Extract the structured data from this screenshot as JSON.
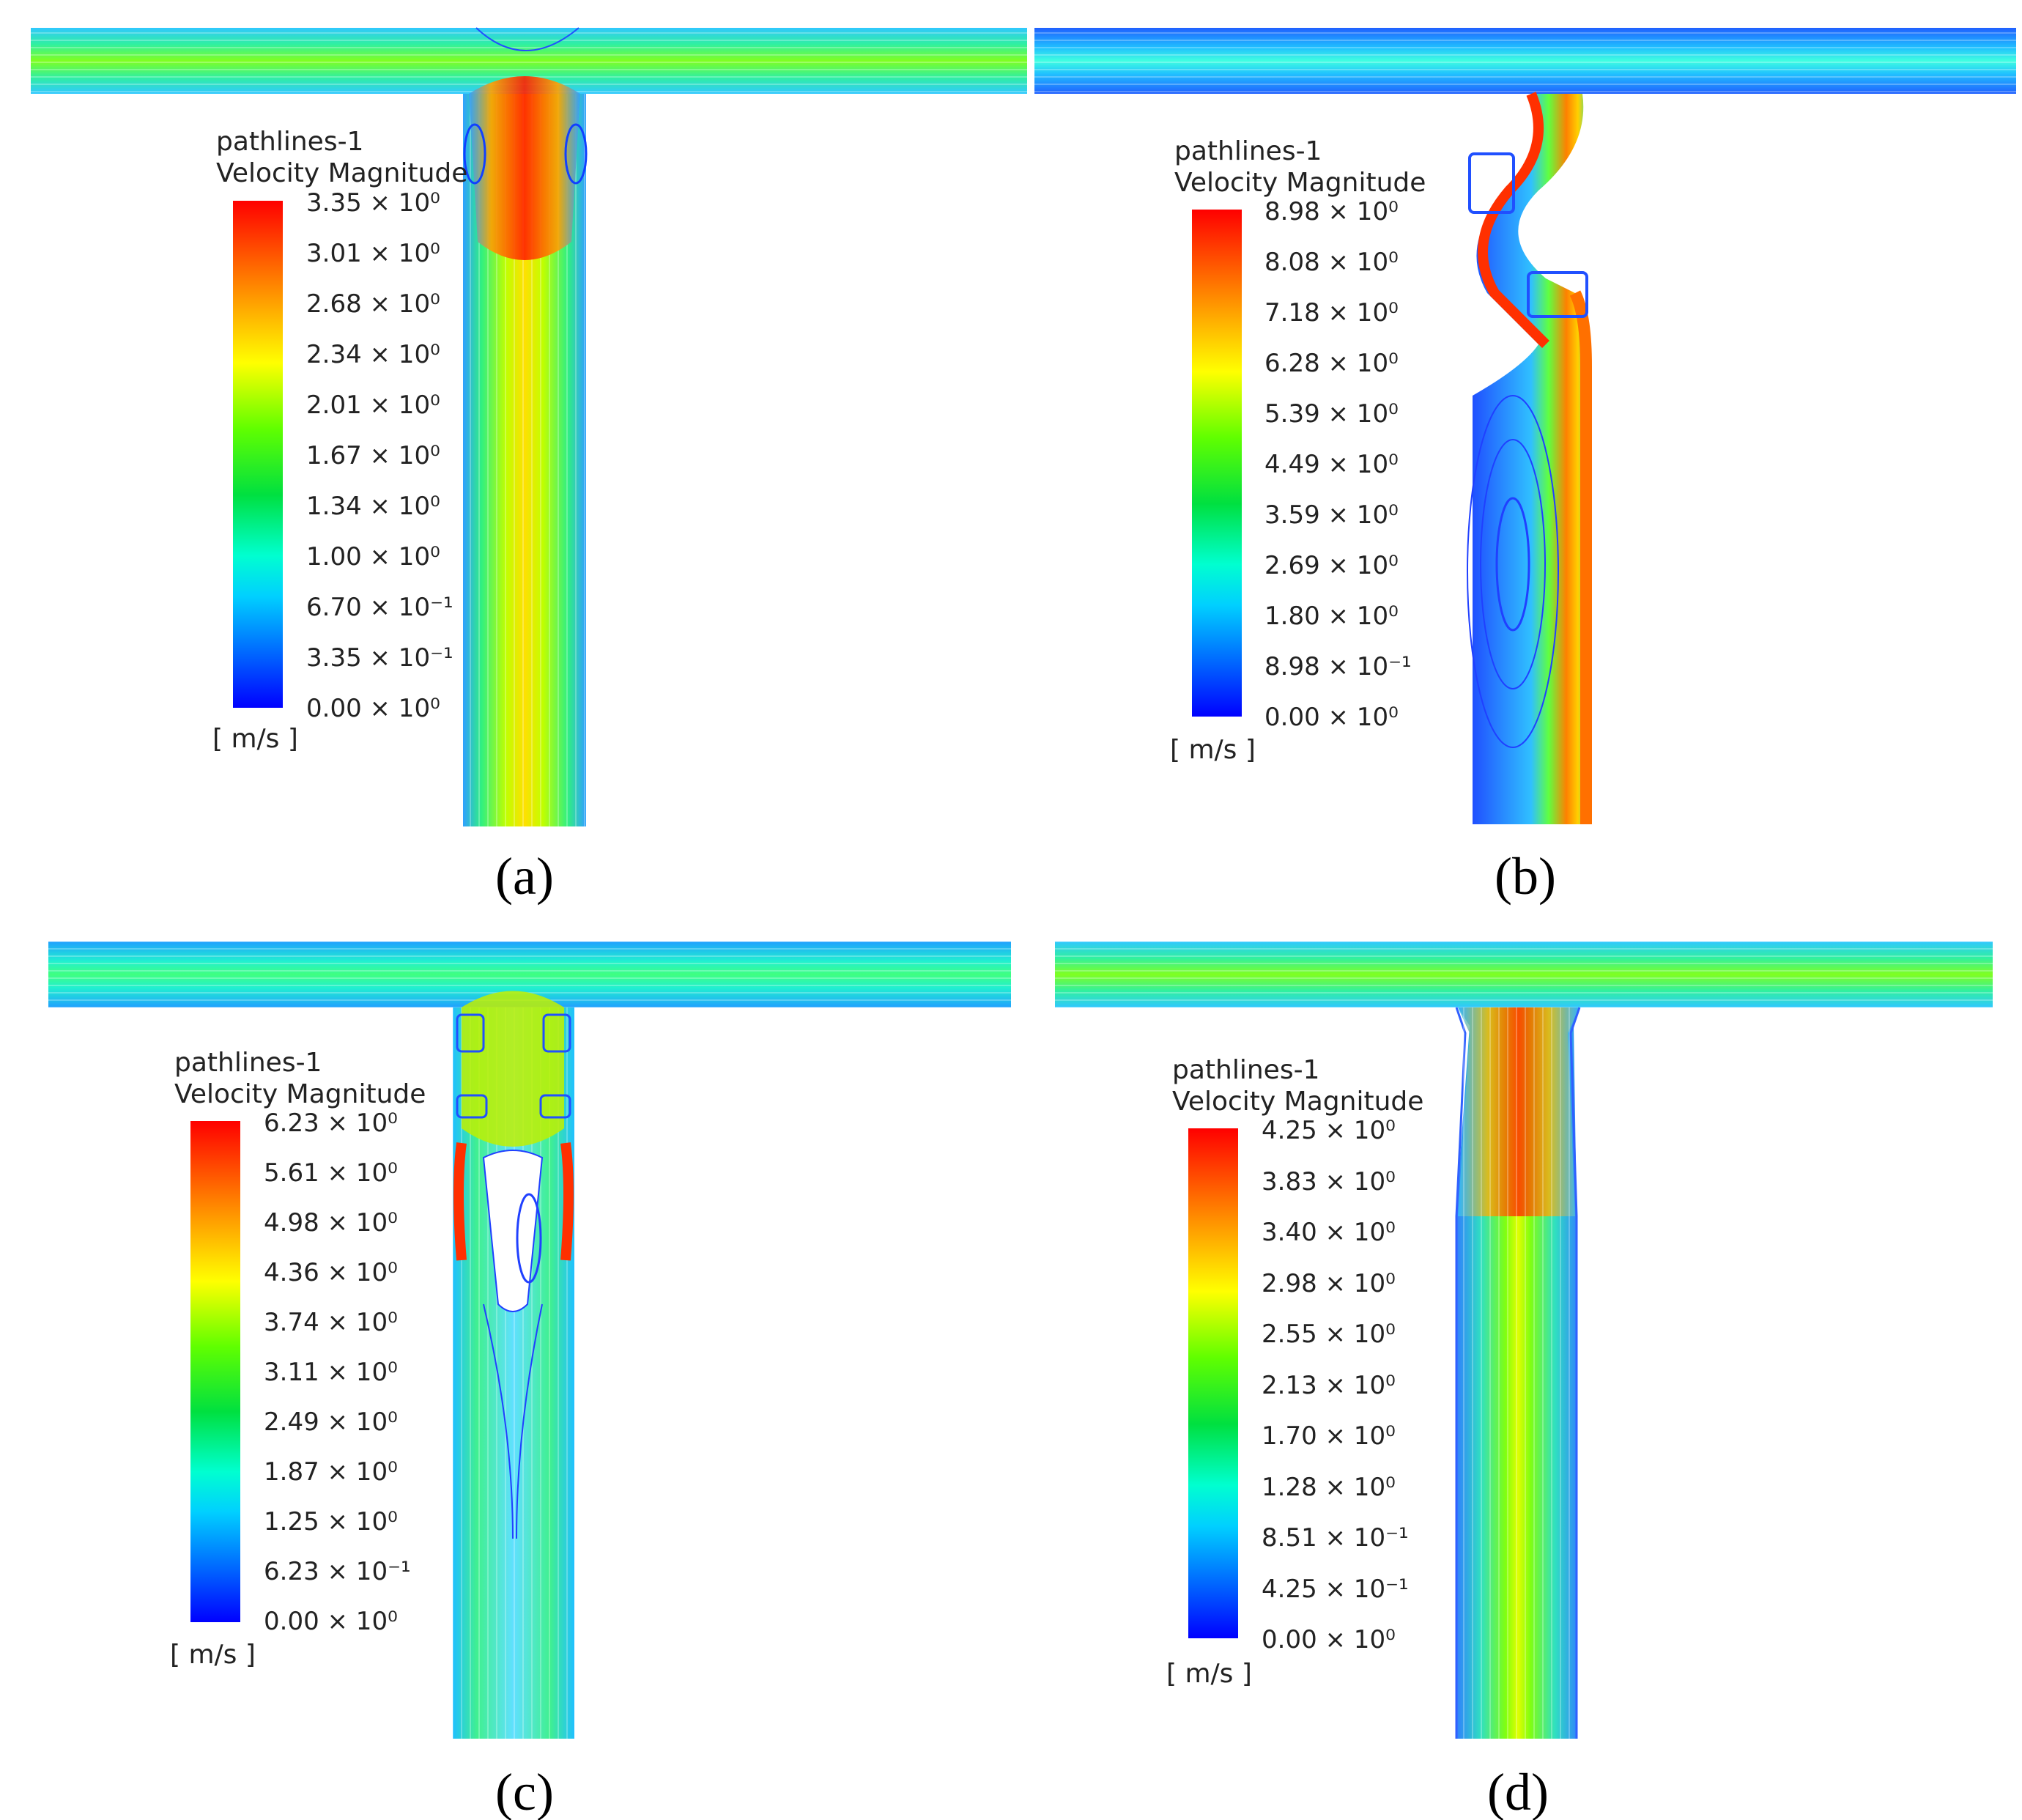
{
  "panels": [
    {
      "id": "a",
      "label": "(a)",
      "legend_title": "pathlines-1",
      "legend_subtitle": "Velocity Magnitude",
      "unit": "[ m/s ]",
      "ticks": [
        "3.35 × 10⁰",
        "3.01 × 10⁰",
        "2.68 × 10⁰",
        "2.34 × 10⁰",
        "2.01 × 10⁰",
        "1.67 × 10⁰",
        "1.34 × 10⁰",
        "1.00 × 10⁰",
        "6.70 × 10⁻¹",
        "3.35 × 10⁻¹",
        "0.00 × 10⁰"
      ]
    },
    {
      "id": "b",
      "label": "(b)",
      "legend_title": "pathlines-1",
      "legend_subtitle": "Velocity Magnitude",
      "unit": "[ m/s ]",
      "ticks": [
        "8.98 × 10⁰",
        "8.08 × 10⁰",
        "7.18 × 10⁰",
        "6.28 × 10⁰",
        "5.39 × 10⁰",
        "4.49 × 10⁰",
        "3.59 × 10⁰",
        "2.69 × 10⁰",
        "1.80 × 10⁰",
        "8.98 × 10⁻¹",
        "0.00 × 10⁰"
      ]
    },
    {
      "id": "c",
      "label": "(c)",
      "legend_title": "pathlines-1",
      "legend_subtitle": "Velocity Magnitude",
      "unit": "[ m/s ]",
      "ticks": [
        "6.23 × 10⁰",
        "5.61 × 10⁰",
        "4.98 × 10⁰",
        "4.36 × 10⁰",
        "3.74 × 10⁰",
        "3.11 × 10⁰",
        "2.49 × 10⁰",
        "1.87 × 10⁰",
        "1.25 × 10⁰",
        "6.23 × 10⁻¹",
        "0.00 × 10⁰"
      ]
    },
    {
      "id": "d",
      "label": "(d)",
      "legend_title": "pathlines-1",
      "legend_subtitle": "Velocity Magnitude",
      "unit": "[ m/s ]",
      "ticks": [
        "4.25 × 10⁰",
        "3.83 × 10⁰",
        "3.40 × 10⁰",
        "2.98 × 10⁰",
        "2.55 × 10⁰",
        "2.13 × 10⁰",
        "1.70 × 10⁰",
        "1.28 × 10⁰",
        "8.51 × 10⁻¹",
        "4.25 × 10⁻¹",
        "0.00 × 10⁰"
      ]
    }
  ],
  "colormap": {
    "stops": [
      "#0000ff",
      "#00a0ff",
      "#00ffff",
      "#00ff80",
      "#00e000",
      "#80ff00",
      "#ffff00",
      "#ffa000",
      "#ff4000",
      "#ff0000"
    ]
  }
}
